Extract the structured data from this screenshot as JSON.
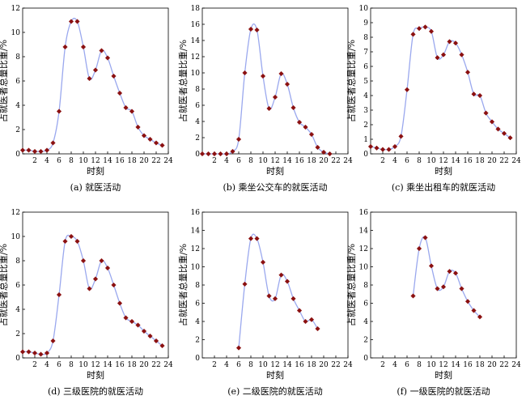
{
  "chart_data": [
    {
      "type": "line",
      "caption": "(a) 就医活动",
      "xlabel": "时刻",
      "ylabel": "占就医者总量比重/%",
      "xlim": [
        0,
        24
      ],
      "ylim": [
        0,
        12
      ],
      "xticks": [
        2,
        4,
        6,
        8,
        10,
        12,
        14,
        16,
        18,
        20,
        22,
        24
      ],
      "yticks": [
        0,
        2,
        4,
        6,
        8,
        10,
        12
      ],
      "grid": false,
      "x": [
        0,
        1,
        2,
        3,
        4,
        5,
        6,
        7,
        8,
        9,
        10,
        11,
        12,
        13,
        14,
        15,
        16,
        17,
        18,
        19,
        20,
        21,
        22,
        23
      ],
      "values": [
        0.3,
        0.3,
        0.2,
        0.2,
        0.3,
        0.9,
        3.5,
        8.8,
        10.9,
        10.9,
        8.8,
        6.2,
        6.9,
        8.5,
        7.9,
        6.4,
        5.0,
        3.8,
        3.5,
        2.2,
        1.5,
        1.2,
        0.9,
        0.7
      ],
      "colors": {
        "line": "#9aa8ee",
        "marker": "#8b1010"
      }
    },
    {
      "type": "line",
      "caption": "(b) 乘坐公交车的就医活动",
      "xlabel": "时刻",
      "ylabel": "占就医者总量比重/%",
      "xlim": [
        0,
        24
      ],
      "ylim": [
        0,
        18
      ],
      "xticks": [
        2,
        4,
        6,
        8,
        10,
        12,
        14,
        16,
        18,
        20,
        22,
        24
      ],
      "yticks": [
        0,
        2,
        4,
        6,
        8,
        10,
        12,
        14,
        16,
        18
      ],
      "grid": false,
      "x": [
        0,
        1,
        2,
        3,
        4,
        5,
        6,
        7,
        8,
        9,
        10,
        11,
        12,
        13,
        14,
        15,
        16,
        17,
        18,
        19,
        20,
        21
      ],
      "values": [
        0,
        0,
        0,
        0,
        0,
        0.3,
        1.8,
        10.0,
        15.4,
        15.3,
        9.6,
        5.6,
        7.0,
        9.9,
        8.6,
        5.7,
        3.9,
        3.3,
        2.4,
        0.8,
        0.2,
        0
      ],
      "colors": {
        "line": "#9aa8ee",
        "marker": "#8b1010"
      }
    },
    {
      "type": "line",
      "caption": "(c) 乘坐出租车的就医活动",
      "xlabel": "时刻",
      "ylabel": "占就医者总量比重/%",
      "xlim": [
        0,
        24
      ],
      "ylim": [
        0,
        10
      ],
      "xticks": [
        2,
        4,
        6,
        8,
        10,
        12,
        14,
        16,
        18,
        20,
        22,
        24
      ],
      "yticks": [
        0,
        1,
        2,
        3,
        4,
        5,
        6,
        7,
        8,
        9,
        10
      ],
      "grid": false,
      "x": [
        0,
        1,
        2,
        3,
        4,
        5,
        6,
        7,
        8,
        9,
        10,
        11,
        12,
        13,
        14,
        15,
        16,
        17,
        18,
        19,
        20,
        21,
        22,
        23
      ],
      "values": [
        0.5,
        0.4,
        0.3,
        0.3,
        0.5,
        1.2,
        4.4,
        8.2,
        8.6,
        8.7,
        8.4,
        6.6,
        6.8,
        7.7,
        7.6,
        6.8,
        5.6,
        4.1,
        4.0,
        2.8,
        2.2,
        1.7,
        1.4,
        1.1
      ],
      "colors": {
        "line": "#9aa8ee",
        "marker": "#8b1010"
      }
    },
    {
      "type": "line",
      "caption": "(d) 三级医院的就医活动",
      "xlabel": "时刻",
      "ylabel": "占就医者总量比重/%",
      "xlim": [
        0,
        24
      ],
      "ylim": [
        0,
        12
      ],
      "xticks": [
        2,
        4,
        6,
        8,
        10,
        12,
        14,
        16,
        18,
        20,
        22,
        24
      ],
      "yticks": [
        0,
        2,
        4,
        6,
        8,
        10,
        12
      ],
      "grid": false,
      "x": [
        0,
        1,
        2,
        3,
        4,
        5,
        6,
        7,
        8,
        9,
        10,
        11,
        12,
        13,
        14,
        15,
        16,
        17,
        18,
        19,
        20,
        21,
        22,
        23
      ],
      "values": [
        0.5,
        0.5,
        0.4,
        0.3,
        0.4,
        1.4,
        5.2,
        9.6,
        10.0,
        9.6,
        8.0,
        5.7,
        6.5,
        8.0,
        7.4,
        6.0,
        4.5,
        3.3,
        3.0,
        2.7,
        2.2,
        1.8,
        1.4,
        1.0
      ],
      "colors": {
        "line": "#9aa8ee",
        "marker": "#8b1010"
      }
    },
    {
      "type": "line",
      "caption": "(e) 二级医院的就医活动",
      "xlabel": "时刻",
      "ylabel": "占就医者总量比重/%",
      "xlim": [
        0,
        24
      ],
      "ylim": [
        0,
        16
      ],
      "xticks": [
        2,
        4,
        6,
        8,
        10,
        12,
        14,
        16,
        18,
        20,
        22,
        24
      ],
      "yticks": [
        0,
        2,
        4,
        6,
        8,
        10,
        12,
        14,
        16
      ],
      "grid": false,
      "x": [
        6,
        7,
        8,
        9,
        10,
        11,
        12,
        13,
        14,
        15,
        16,
        17,
        18,
        19
      ],
      "values": [
        1.1,
        8.1,
        13.1,
        13.1,
        10.5,
        6.8,
        6.5,
        9.1,
        8.4,
        6.5,
        5.2,
        4.0,
        4.2,
        3.2
      ],
      "colors": {
        "line": "#9aa8ee",
        "marker": "#8b1010"
      }
    },
    {
      "type": "line",
      "caption": "(f) 一级医院的就医活动",
      "xlabel": "时刻",
      "ylabel": "占就医者总量比重/%",
      "xlim": [
        0,
        24
      ],
      "ylim": [
        0,
        16
      ],
      "xticks": [
        2,
        4,
        6,
        8,
        10,
        12,
        14,
        16,
        18,
        20,
        22,
        24
      ],
      "yticks": [
        0,
        2,
        4,
        6,
        8,
        10,
        12,
        14,
        16
      ],
      "grid": false,
      "x": [
        7,
        8,
        9,
        10,
        11,
        12,
        13,
        14,
        15,
        16,
        17,
        18
      ],
      "values": [
        6.8,
        12.0,
        13.2,
        10.1,
        7.6,
        7.8,
        9.5,
        9.3,
        7.6,
        6.2,
        5.2,
        4.5
      ],
      "colors": {
        "line": "#9aa8ee",
        "marker": "#8b1010"
      }
    }
  ]
}
